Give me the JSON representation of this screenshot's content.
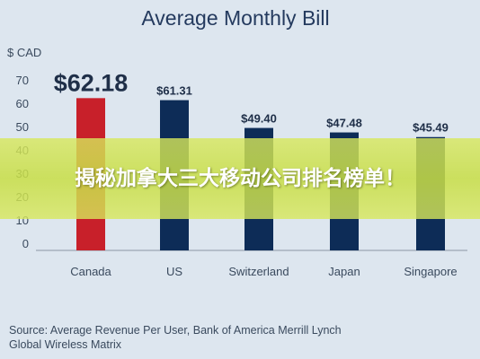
{
  "chart_data": {
    "type": "bar",
    "title": "Average Monthly Bill",
    "ylabel": "$ CAD",
    "xlabel": "",
    "categories": [
      "Canada",
      "US",
      "Switzerland",
      "Japan",
      "Singapore"
    ],
    "values": [
      62.18,
      61.31,
      49.4,
      47.48,
      45.49
    ],
    "value_labels": [
      "$62.18",
      "$61.31",
      "$49.40",
      "$47.48",
      "$45.49"
    ],
    "bar_colors": [
      "#c8202a",
      "#0d2c57",
      "#0d2c57",
      "#0d2c57",
      "#0d2c57"
    ],
    "yticks": [
      0,
      10,
      20,
      30,
      40,
      50,
      60,
      70
    ],
    "ylim": [
      0,
      75
    ],
    "grid": false,
    "source": "Source: Average Revenue Per User, Bank of America Merrill Lynch Global Wireless Matrix"
  },
  "banner": {
    "text": "揭秘加拿大三大移动公司排名榜单！"
  },
  "colors": {
    "background": "#dde6ef",
    "title": "#243a5e",
    "text": "#3a4a5e",
    "axis": "#8a96a6"
  }
}
